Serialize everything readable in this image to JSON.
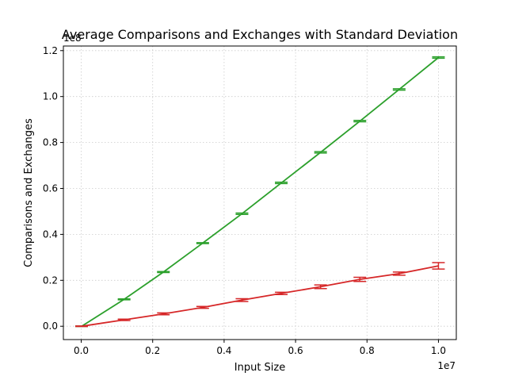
{
  "chart_data": {
    "type": "line",
    "title": "Average Comparisons and Exchanges with Standard Deviation",
    "xlabel": "Input Size",
    "ylabel": "Comparisons and Exchanges",
    "x_multiplier": "1e7",
    "y_multiplier": "1e8",
    "xlim": [
      -0.05,
      1.05
    ],
    "ylim": [
      -0.058,
      1.22
    ],
    "x_ticks": [
      0.0,
      0.2,
      0.4,
      0.6,
      0.8,
      1.0
    ],
    "x_tick_labels": [
      "0.0",
      "0.2",
      "0.4",
      "0.6",
      "0.8",
      "1.0"
    ],
    "y_ticks": [
      0.0,
      0.2,
      0.4,
      0.6,
      0.8,
      1.0,
      1.2
    ],
    "y_tick_labels": [
      "0.0",
      "0.2",
      "0.4",
      "0.6",
      "0.8",
      "1.0",
      "1.2"
    ],
    "grid": true,
    "series": [
      {
        "color": "#2ca02c",
        "x": [
          0.001,
          0.12,
          0.23,
          0.34,
          0.45,
          0.56,
          0.67,
          0.78,
          0.89,
          1.0
        ],
        "y": [
          0.0,
          0.117,
          0.236,
          0.362,
          0.49,
          0.624,
          0.757,
          0.893,
          1.031,
          1.17
        ],
        "err": [
          0.001,
          0.002,
          0.002,
          0.002,
          0.003,
          0.003,
          0.003,
          0.003,
          0.003,
          0.003
        ]
      },
      {
        "color": "#d62728",
        "x": [
          0.001,
          0.12,
          0.23,
          0.34,
          0.45,
          0.56,
          0.67,
          0.78,
          0.89,
          1.0
        ],
        "y": [
          0.0,
          0.028,
          0.054,
          0.082,
          0.114,
          0.143,
          0.172,
          0.204,
          0.229,
          0.263
        ],
        "err": [
          0.001,
          0.003,
          0.004,
          0.004,
          0.006,
          0.005,
          0.008,
          0.009,
          0.007,
          0.014
        ]
      }
    ]
  }
}
